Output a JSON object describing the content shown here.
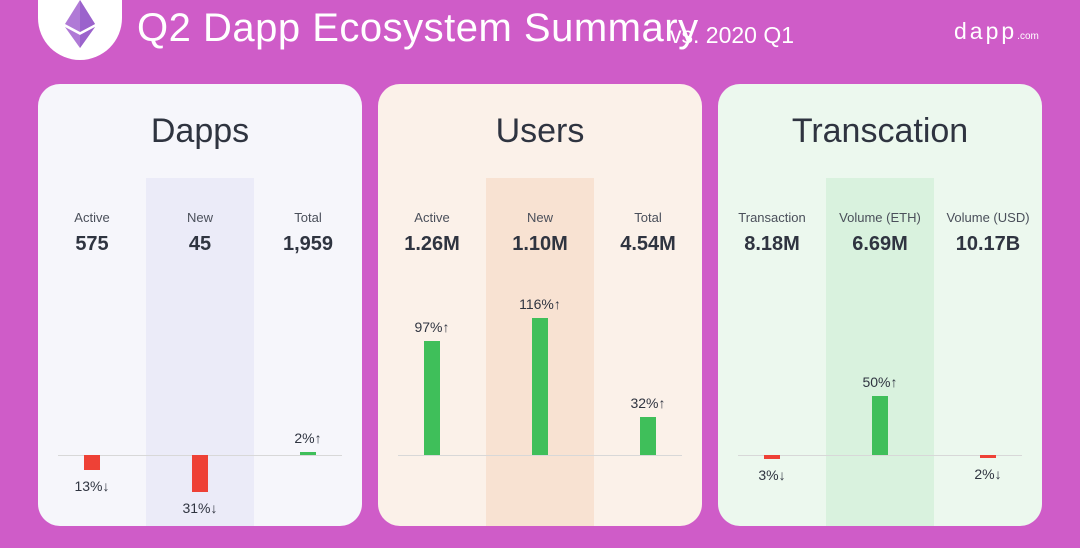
{
  "header": {
    "title": "Q2 Dapp Ecosystem Summary",
    "subtitle": "vs. 2020 Q1",
    "brand": "dapp",
    "brand_suffix": ".com"
  },
  "colors": {
    "background": "#cf5cc8",
    "increase": "#3fbf5a",
    "decrease": "#ee4136",
    "panel_dapps": "#f6f6fb",
    "panel_users": "#fbf1e9",
    "panel_transaction": "#ecf8ee"
  },
  "icons": [
    "ethereum-icon"
  ],
  "chart_data": [
    {
      "type": "bar",
      "title": "Dapps",
      "categories": [
        "Active",
        "New",
        "Total"
      ],
      "totals": [
        "575",
        "45",
        "1,959"
      ],
      "values": [
        -13,
        -31,
        2
      ],
      "labels": [
        "13%↓",
        "31%↓",
        "2%↑"
      ],
      "unit": "%"
    },
    {
      "type": "bar",
      "title": "Users",
      "categories": [
        "Active",
        "New",
        "Total"
      ],
      "totals": [
        "1.26M",
        "1.10M",
        "4.54M"
      ],
      "values": [
        97,
        116,
        32
      ],
      "labels": [
        "97%↑",
        "116%↑",
        "32%↑"
      ],
      "unit": "%"
    },
    {
      "type": "bar",
      "title": "Transcation",
      "categories": [
        "Transaction",
        "Volume (ETH)",
        "Volume (USD)"
      ],
      "totals": [
        "8.18M",
        "6.69M",
        "10.17B"
      ],
      "values": [
        -3,
        50,
        -2
      ],
      "labels": [
        "3%↓",
        "50%↑",
        "2%↓"
      ],
      "unit": "%"
    }
  ]
}
